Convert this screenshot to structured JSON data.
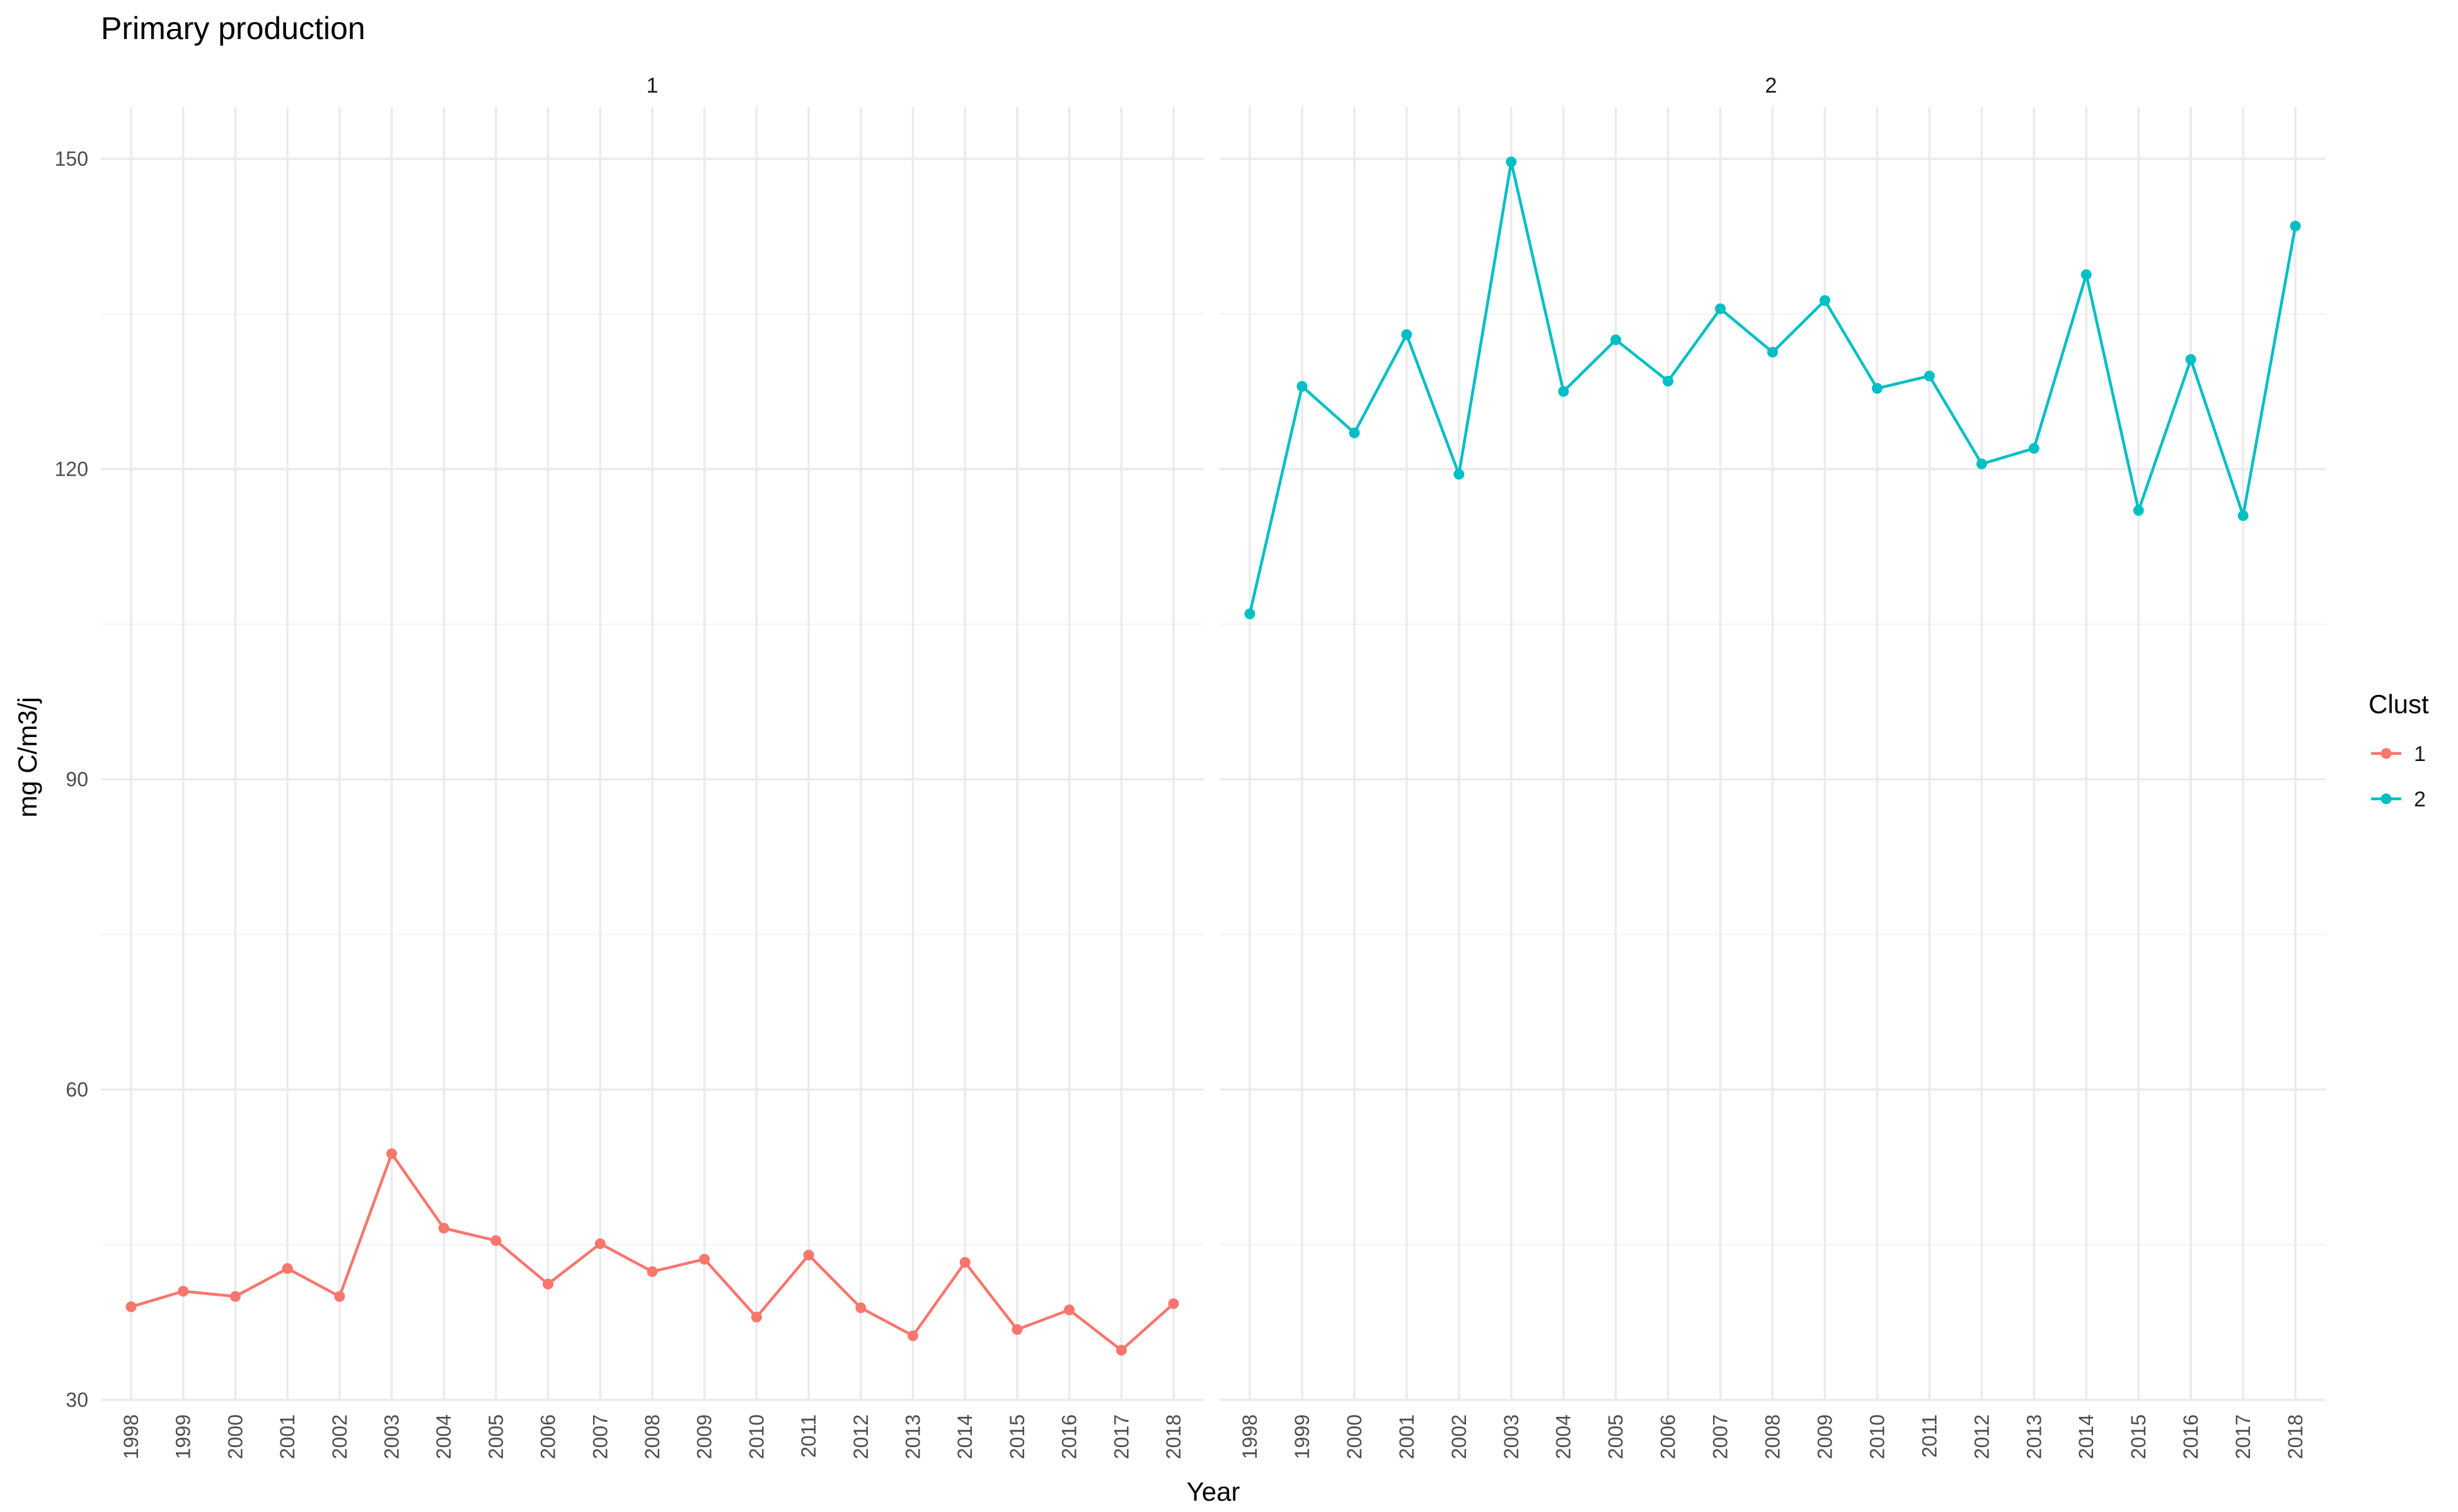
{
  "chart_data": {
    "type": "line",
    "title": "Primary production",
    "xlabel": "Year",
    "ylabel": "mg C/m3/j",
    "ylim": [
      30,
      155
    ],
    "yticks": [
      30,
      60,
      90,
      120,
      150
    ],
    "grid": true,
    "legend": {
      "title": "Clust",
      "placement": "right",
      "entries": [
        "1",
        "2"
      ]
    },
    "x": [
      "1998",
      "1999",
      "2000",
      "2001",
      "2002",
      "2003",
      "2004",
      "2005",
      "2006",
      "2007",
      "2008",
      "2009",
      "2010",
      "2011",
      "2012",
      "2013",
      "2014",
      "2015",
      "2016",
      "2017",
      "2018"
    ],
    "facets": [
      {
        "label": "1",
        "series": [
          {
            "name": "1",
            "color": "#F8766D",
            "values": [
              39.0,
              40.5,
              40.0,
              42.7,
              40.0,
              53.8,
              46.6,
              45.4,
              41.2,
              45.1,
              42.4,
              43.6,
              38.0,
              44.0,
              38.9,
              36.2,
              43.3,
              36.8,
              38.7,
              34.8,
              39.3
            ]
          }
        ]
      },
      {
        "label": "2",
        "series": [
          {
            "name": "2",
            "color": "#00BFC4",
            "values": [
              106.0,
              128.0,
              123.5,
              133.0,
              119.5,
              149.7,
              127.5,
              132.5,
              128.5,
              135.5,
              131.3,
              136.3,
              127.8,
              129.0,
              120.5,
              122.0,
              138.8,
              116.0,
              130.6,
              115.5,
              143.5
            ]
          }
        ]
      }
    ]
  }
}
